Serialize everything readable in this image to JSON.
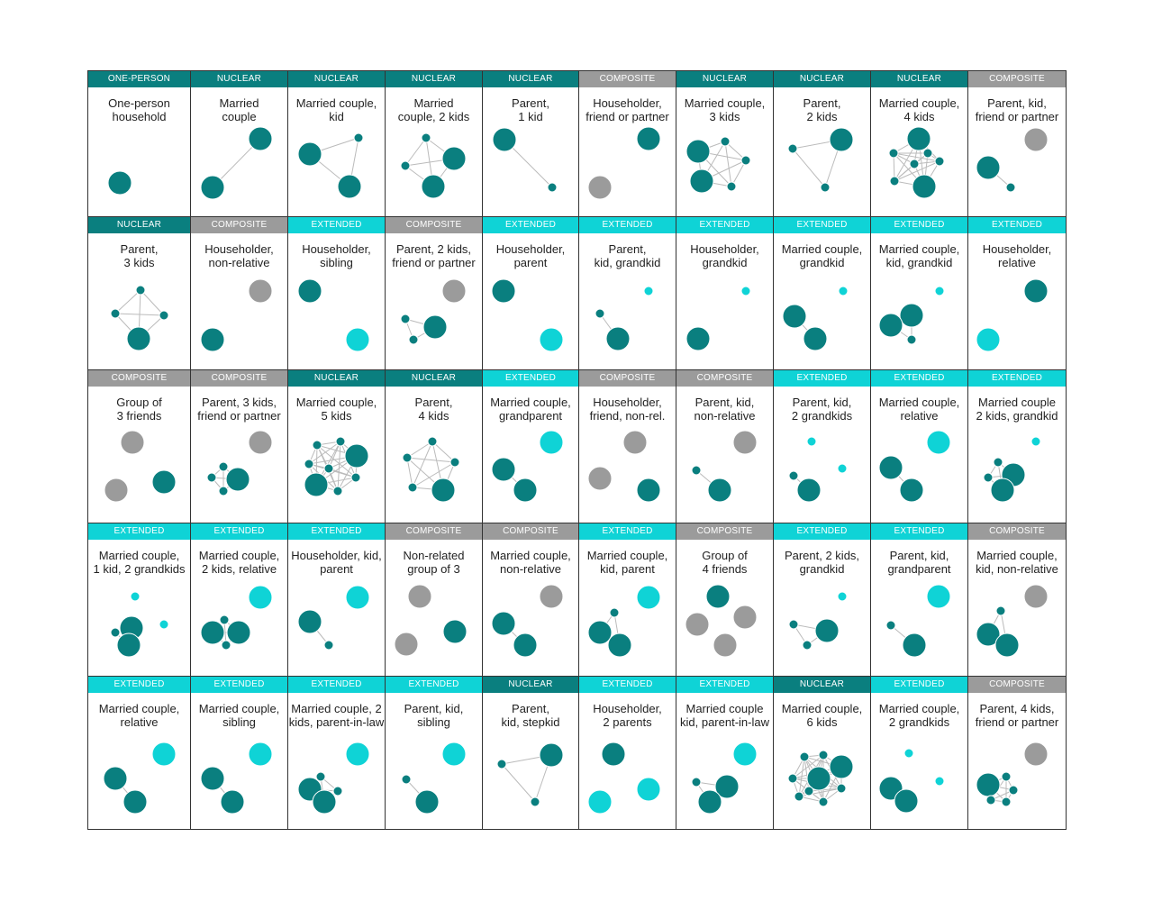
{
  "colors": {
    "NUCLEAR": "#0a7f7f",
    "ONE-PERSON": "#0a7f7f",
    "COMPOSITE": "#9b9b9b",
    "EXTENDED": "#0fd3d6",
    "edge": "#bbbbbb"
  },
  "cells": [
    {
      "category": "ONE-PERSON",
      "label": [
        "One-person",
        "household"
      ]
    },
    {
      "category": "NUCLEAR",
      "label": [
        "Married",
        "couple"
      ]
    },
    {
      "category": "NUCLEAR",
      "label": [
        "Married couple,",
        "kid"
      ]
    },
    {
      "category": "NUCLEAR",
      "label": [
        "Married",
        "couple, 2 kids"
      ]
    },
    {
      "category": "NUCLEAR",
      "label": [
        "Parent,",
        "1 kid"
      ]
    },
    {
      "category": "COMPOSITE",
      "label": [
        "Householder,",
        "friend or partner"
      ]
    },
    {
      "category": "NUCLEAR",
      "label": [
        "Married couple,",
        "3 kids"
      ]
    },
    {
      "category": "NUCLEAR",
      "label": [
        "Parent,",
        "2 kids"
      ]
    },
    {
      "category": "NUCLEAR",
      "label": [
        "Married couple,",
        "4 kids"
      ]
    },
    {
      "category": "COMPOSITE",
      "label": [
        "Parent, kid,",
        "friend or partner"
      ]
    },
    {
      "category": "NUCLEAR",
      "label": [
        "Parent,",
        "3 kids"
      ]
    },
    {
      "category": "COMPOSITE",
      "label": [
        "Householder,",
        "non-relative"
      ]
    },
    {
      "category": "EXTENDED",
      "label": [
        "Householder,",
        "sibling"
      ]
    },
    {
      "category": "COMPOSITE",
      "label": [
        "Parent, 2 kids,",
        "friend or partner"
      ]
    },
    {
      "category": "EXTENDED",
      "label": [
        "Householder,",
        "parent"
      ]
    },
    {
      "category": "EXTENDED",
      "label": [
        "Parent,",
        "kid, grandkid"
      ]
    },
    {
      "category": "EXTENDED",
      "label": [
        "Householder,",
        "grandkid"
      ]
    },
    {
      "category": "EXTENDED",
      "label": [
        "Married couple,",
        "grandkid"
      ]
    },
    {
      "category": "EXTENDED",
      "label": [
        "Married couple,",
        "kid, grandkid"
      ]
    },
    {
      "category": "EXTENDED",
      "label": [
        "Householder,",
        "relative"
      ]
    },
    {
      "category": "COMPOSITE",
      "label": [
        "Group of",
        "3 friends"
      ]
    },
    {
      "category": "COMPOSITE",
      "label": [
        "Parent, 3 kids,",
        "friend or partner"
      ]
    },
    {
      "category": "NUCLEAR",
      "label": [
        "Married couple,",
        "5 kids"
      ]
    },
    {
      "category": "NUCLEAR",
      "label": [
        "Parent,",
        "4 kids"
      ]
    },
    {
      "category": "EXTENDED",
      "label": [
        "Married couple,",
        "grandparent"
      ]
    },
    {
      "category": "COMPOSITE",
      "label": [
        "Householder,",
        "friend, non-rel."
      ]
    },
    {
      "category": "COMPOSITE",
      "label": [
        "Parent, kid,",
        "non-relative"
      ]
    },
    {
      "category": "EXTENDED",
      "label": [
        "Parent, kid,",
        "2 grandkids"
      ]
    },
    {
      "category": "EXTENDED",
      "label": [
        "Married couple,",
        "relative"
      ]
    },
    {
      "category": "EXTENDED",
      "label": [
        "Married couple",
        "2 kids, grandkid"
      ]
    },
    {
      "category": "EXTENDED",
      "label": [
        "Married couple,",
        "1 kid, 2 grandkids"
      ]
    },
    {
      "category": "EXTENDED",
      "label": [
        "Married couple,",
        "2 kids, relative"
      ]
    },
    {
      "category": "EXTENDED",
      "label": [
        "Householder, kid,",
        "parent"
      ]
    },
    {
      "category": "COMPOSITE",
      "label": [
        "Non-related",
        "group of 3"
      ]
    },
    {
      "category": "COMPOSITE",
      "label": [
        "Married couple,",
        "non-relative"
      ]
    },
    {
      "category": "EXTENDED",
      "label": [
        "Married couple,",
        "kid, parent"
      ]
    },
    {
      "category": "COMPOSITE",
      "label": [
        "Group of",
        "4 friends"
      ]
    },
    {
      "category": "EXTENDED",
      "label": [
        "Parent, 2 kids,",
        "grandkid"
      ]
    },
    {
      "category": "EXTENDED",
      "label": [
        "Parent, kid,",
        "grandparent"
      ]
    },
    {
      "category": "COMPOSITE",
      "label": [
        "Married couple,",
        "kid, non-relative"
      ]
    },
    {
      "category": "EXTENDED",
      "label": [
        "Married couple,",
        "relative"
      ]
    },
    {
      "category": "EXTENDED",
      "label": [
        "Married couple,",
        "sibling"
      ]
    },
    {
      "category": "EXTENDED",
      "label": [
        "Married couple, 2",
        "kids, parent-in-law"
      ]
    },
    {
      "category": "EXTENDED",
      "label": [
        "Parent, kid,",
        "sibling"
      ]
    },
    {
      "category": "NUCLEAR",
      "label": [
        "Parent,",
        "kid, stepkid"
      ]
    },
    {
      "category": "EXTENDED",
      "label": [
        "Householder,",
        "2 parents"
      ]
    },
    {
      "category": "EXTENDED",
      "label": [
        "Married couple",
        "kid, parent-in-law"
      ]
    },
    {
      "category": "NUCLEAR",
      "label": [
        "Married couple,",
        "6 kids"
      ]
    },
    {
      "category": "EXTENDED",
      "label": [
        "Married couple,",
        "2 grandkids"
      ]
    },
    {
      "category": "COMPOSITE",
      "label": [
        "Parent, 4 kids,",
        "friend or partner"
      ]
    }
  ]
}
